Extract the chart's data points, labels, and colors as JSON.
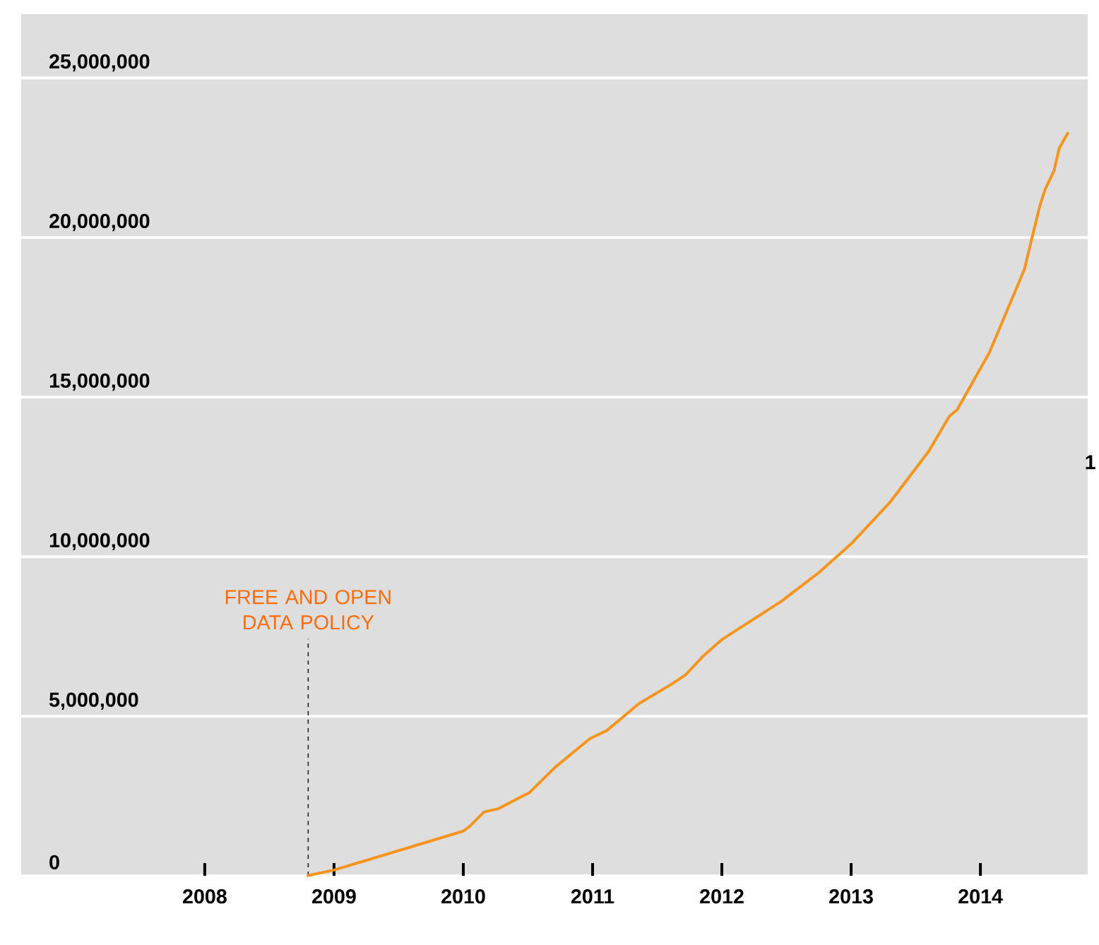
{
  "chart_data": {
    "type": "line",
    "xlim": [
      2006.58,
      2014.83
    ],
    "ylim": [
      0,
      27000000
    ],
    "xticks": [
      2008,
      2009,
      2010,
      2011,
      2012,
      2013,
      2014
    ],
    "yticks": [
      {
        "value": 0,
        "label": "0"
      },
      {
        "value": 5000000,
        "label": "5,000,000"
      },
      {
        "value": 10000000,
        "label": "10,000,000"
      },
      {
        "value": 15000000,
        "label": "15,000,000"
      },
      {
        "value": 20000000,
        "label": "20,000,000"
      },
      {
        "value": 25000000,
        "label": "25,000,000"
      }
    ],
    "grid": "y",
    "marker": "none",
    "line_style": "solid",
    "series": [
      {
        "color": "#f7941d",
        "x": [
          2008.79,
          2009.0,
          2010.0,
          2010.05,
          2010.16,
          2010.27,
          2010.46,
          2010.51,
          2010.71,
          2010.98,
          2011.11,
          2011.36,
          2011.61,
          2011.72,
          2011.86,
          2012.0,
          2012.46,
          2012.75,
          2013.0,
          2013.3,
          2013.6,
          2013.76,
          2013.82,
          2014.07,
          2014.34,
          2014.46,
          2014.5,
          2014.57,
          2014.61,
          2014.68
        ],
        "values": [
          0,
          180000,
          1400000,
          1550000,
          2000000,
          2100000,
          2500000,
          2600000,
          3400000,
          4300000,
          4550000,
          5400000,
          6000000,
          6300000,
          6900000,
          7400000,
          8600000,
          9500000,
          10400000,
          11700000,
          13300000,
          14400000,
          14600000,
          16400000,
          19000000,
          21000000,
          21500000,
          22100000,
          22800000,
          23300000
        ]
      }
    ],
    "ref_lines": [
      {
        "axis": "x",
        "value": 2008.8,
        "label": "FREE AND OPEN DATA POLICY",
        "color": "#222222",
        "line_style": "dashed"
      }
    ],
    "annotations": [
      "1"
    ]
  }
}
